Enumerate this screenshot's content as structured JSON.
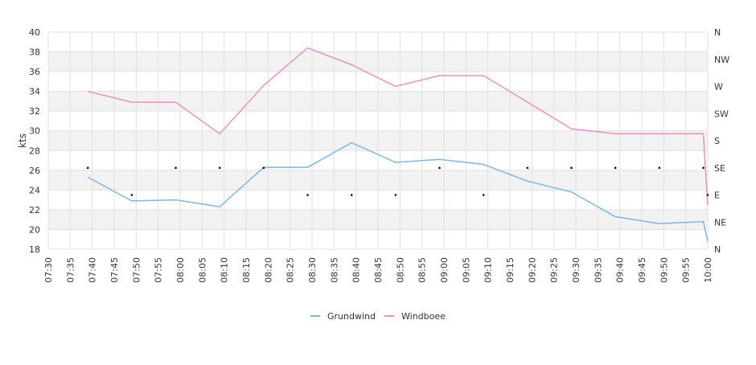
{
  "chart_data": {
    "type": "line",
    "ylabel": "kts",
    "ylim": [
      18,
      40
    ],
    "yticks": [
      "18",
      "20",
      "22",
      "24",
      "26",
      "28",
      "30",
      "32",
      "34",
      "36",
      "38",
      "40"
    ],
    "direction_ticks": [
      "N",
      "NE",
      "E",
      "SE",
      "S",
      "SW",
      "W",
      "NW",
      "N"
    ],
    "x_ticks": [
      "07:30",
      "07:35",
      "07:40",
      "07:45",
      "07:50",
      "07:55",
      "08:00",
      "08:05",
      "08:10",
      "08:15",
      "08:20",
      "08:25",
      "08:30",
      "08:35",
      "08:40",
      "08:45",
      "08:50",
      "08:55",
      "09:00",
      "09:05",
      "09:10",
      "09:15",
      "09:20",
      "09:25",
      "09:30",
      "09:35",
      "09:40",
      "09:45",
      "09:50",
      "09:55",
      "10:00"
    ],
    "grid": true,
    "legend_position": "bottom-center",
    "series": [
      {
        "name": "Grundwind",
        "color": "#7cb5ec",
        "x": [
          "07:39",
          "07:49",
          "07:59",
          "08:09",
          "08:19",
          "08:29",
          "08:39",
          "08:49",
          "08:59",
          "09:09",
          "09:19",
          "09:29",
          "09:39",
          "09:49",
          "09:59",
          "10:00"
        ],
        "values": [
          25.3,
          22.9,
          23.0,
          22.3,
          26.3,
          26.3,
          28.8,
          26.8,
          27.1,
          26.6,
          24.9,
          23.8,
          21.3,
          20.6,
          20.8,
          18.8
        ]
      },
      {
        "name": "Windboee",
        "color": "#f08fc0",
        "x": [
          "07:39",
          "07:49",
          "07:59",
          "08:09",
          "08:19",
          "08:29",
          "08:39",
          "08:49",
          "08:59",
          "09:09",
          "09:19",
          "09:29",
          "09:39",
          "09:49",
          "09:59",
          "10:00"
        ],
        "values": [
          34.0,
          32.9,
          32.9,
          29.7,
          34.6,
          38.4,
          36.7,
          34.5,
          35.6,
          35.6,
          32.9,
          30.2,
          29.7,
          29.7,
          29.7,
          22.5
        ]
      }
    ],
    "direction_points": {
      "x": [
        "07:39",
        "07:49",
        "07:59",
        "08:09",
        "08:19",
        "08:29",
        "08:39",
        "08:49",
        "08:59",
        "09:09",
        "09:19",
        "09:29",
        "09:39",
        "09:49",
        "09:59",
        "10:00"
      ],
      "values": [
        "SE",
        "E",
        "SE",
        "SE",
        "SE",
        "E",
        "E",
        "E",
        "SE",
        "E",
        "SE",
        "SE",
        "SE",
        "SE",
        "SE",
        "E"
      ]
    }
  }
}
